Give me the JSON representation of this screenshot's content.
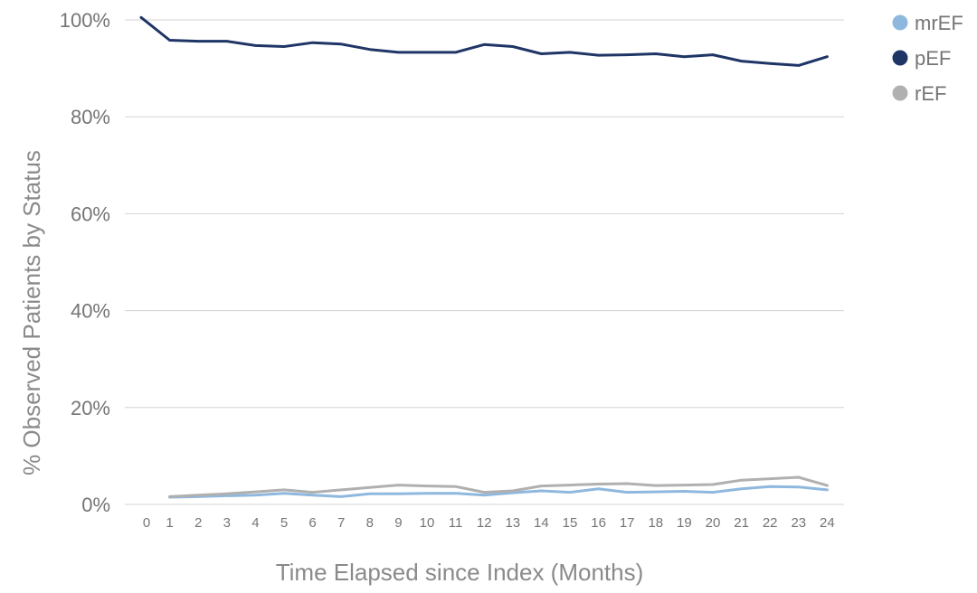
{
  "chart_data": {
    "type": "line",
    "xlabel": "Time Elapsed since Index (Months)",
    "ylabel": "% Observed Patients by Status",
    "x": [
      0,
      1,
      2,
      3,
      4,
      5,
      6,
      7,
      8,
      9,
      10,
      11,
      12,
      13,
      14,
      15,
      16,
      17,
      18,
      19,
      20,
      21,
      22,
      23,
      24
    ],
    "ylim": [
      0,
      100
    ],
    "yticks": [
      0,
      20,
      40,
      60,
      80,
      100
    ],
    "ytick_labels": [
      "0%",
      "20%",
      "40%",
      "60%",
      "80%",
      "100%"
    ],
    "grid": true,
    "legend_position": "top-right",
    "series": [
      {
        "name": "mrEF",
        "color": "#8fb8de",
        "values": [
          null,
          1.5,
          1.6,
          1.8,
          1.9,
          2.3,
          1.9,
          1.6,
          2.2,
          2.2,
          2.3,
          2.3,
          1.9,
          2.4,
          2.8,
          2.5,
          3.2,
          2.5,
          2.6,
          2.7,
          2.5,
          3.2,
          3.7,
          3.6,
          3.0
        ]
      },
      {
        "name": "pEF",
        "color": "#1f3566",
        "values": [
          100.5,
          95.8,
          95.6,
          95.6,
          94.7,
          94.5,
          95.3,
          95.0,
          93.9,
          93.3,
          93.3,
          93.3,
          94.9,
          94.5,
          93.0,
          93.3,
          92.7,
          92.8,
          93.0,
          92.4,
          92.8,
          91.5,
          91.0,
          90.6,
          92.4
        ]
      },
      {
        "name": "rEF",
        "color": "#b0b0b0",
        "values": [
          null,
          1.6,
          1.9,
          2.2,
          2.6,
          3.0,
          2.5,
          3.0,
          3.5,
          4.0,
          3.8,
          3.7,
          2.5,
          2.8,
          3.8,
          4.0,
          4.2,
          4.3,
          3.9,
          4.0,
          4.1,
          5.0,
          5.3,
          5.6,
          3.9
        ]
      }
    ]
  }
}
